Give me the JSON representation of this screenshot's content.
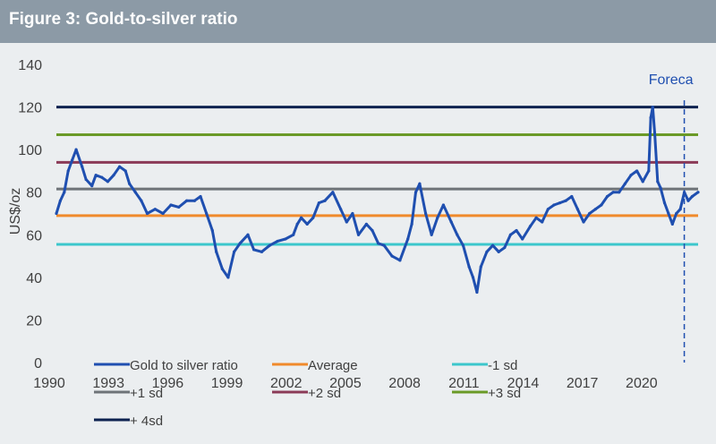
{
  "chart_data": {
    "type": "line",
    "title": "Figure 3: Gold-to-silver ratio",
    "ylabel": "US$/oz",
    "xlabel": "",
    "xlim": [
      1990,
      2022.5
    ],
    "ylim": [
      0,
      140
    ],
    "yticks": [
      "0",
      "20",
      "40",
      "60",
      "80",
      "100",
      "120",
      "140"
    ],
    "xticks": [
      "1990",
      "1993",
      "1996",
      "1999",
      "2002",
      "2005",
      "2008",
      "2011",
      "2014",
      "2017",
      "2020"
    ],
    "forecast_label": "Foreca",
    "forecast_x": 2021.8,
    "colors": {
      "ratio": "#1f4fb0",
      "average": "#f08a2c",
      "minus1": "#3cc7cc",
      "plus1": "#6e7378",
      "plus2": "#8b3a57",
      "plus3": "#6a9a27",
      "plus4": "#0d2250",
      "title_bg": "#8c9aa6",
      "plot_bg": "#ebeef0"
    },
    "series": [
      {
        "name": "Gold to silver ratio",
        "key": "ratio",
        "x": [
          1990.0,
          1990.2,
          1990.4,
          1990.6,
          1990.8,
          1991.0,
          1991.3,
          1991.5,
          1991.8,
          1992.0,
          1992.3,
          1992.6,
          1992.9,
          1993.2,
          1993.5,
          1993.7,
          1994.0,
          1994.3,
          1994.6,
          1995.0,
          1995.4,
          1995.8,
          1996.2,
          1996.6,
          1997.0,
          1997.3,
          1997.6,
          1997.9,
          1998.1,
          1998.4,
          1998.7,
          1999.0,
          1999.3,
          1999.7,
          2000.0,
          2000.4,
          2000.8,
          2001.2,
          2001.6,
          2002.0,
          2002.2,
          2002.4,
          2002.7,
          2003.0,
          2003.3,
          2003.6,
          2004.0,
          2004.4,
          2004.7,
          2005.0,
          2005.3,
          2005.7,
          2006.0,
          2006.3,
          2006.6,
          2007.0,
          2007.4,
          2007.8,
          2008.0,
          2008.2,
          2008.4,
          2008.7,
          2009.0,
          2009.3,
          2009.6,
          2010.0,
          2010.3,
          2010.6,
          2010.9,
          2011.1,
          2011.3,
          2011.5,
          2011.8,
          2012.1,
          2012.4,
          2012.7,
          2013.0,
          2013.3,
          2013.6,
          2014.0,
          2014.3,
          2014.6,
          2014.9,
          2015.2,
          2015.5,
          2015.8,
          2016.1,
          2016.4,
          2016.7,
          2017.0,
          2017.3,
          2017.6,
          2017.9,
          2018.2,
          2018.5,
          2018.8,
          2019.1,
          2019.4,
          2019.7,
          2020.0,
          2020.1,
          2020.2,
          2020.3,
          2020.45,
          2020.6,
          2020.8,
          2021.0,
          2021.2,
          2021.4,
          2021.6,
          2021.8,
          2022.0,
          2022.2,
          2022.5
        ],
        "values": [
          70,
          76,
          80,
          90,
          95,
          100,
          92,
          86,
          83,
          88,
          87,
          85,
          88,
          92,
          90,
          84,
          80,
          76,
          70,
          72,
          70,
          74,
          73,
          76,
          76,
          78,
          70,
          62,
          52,
          44,
          40,
          52,
          56,
          60,
          53,
          52,
          55,
          57,
          58,
          60,
          65,
          68,
          65,
          68,
          75,
          76,
          80,
          72,
          66,
          70,
          60,
          65,
          62,
          56,
          55,
          50,
          48,
          58,
          65,
          80,
          84,
          70,
          60,
          68,
          74,
          66,
          60,
          55,
          45,
          40,
          33,
          45,
          52,
          55,
          52,
          54,
          60,
          62,
          58,
          64,
          68,
          66,
          72,
          74,
          75,
          76,
          78,
          72,
          66,
          70,
          72,
          74,
          78,
          80,
          80,
          84,
          88,
          90,
          85,
          90,
          115,
          120,
          108,
          85,
          82,
          75,
          70,
          65,
          70,
          72,
          80,
          76,
          78,
          80
        ]
      }
    ],
    "reference_lines": [
      {
        "name": "Average",
        "key": "average",
        "value": 69
      },
      {
        "name": "-1 sd",
        "key": "minus1",
        "value": 55.5
      },
      {
        "name": "+1 sd",
        "key": "plus1",
        "value": 81.5
      },
      {
        "name": "+2 sd",
        "key": "plus2",
        "value": 94
      },
      {
        "name": "+3 sd",
        "key": "plus3",
        "value": 107
      },
      {
        "name": "+ 4sd",
        "key": "plus4",
        "value": 120
      }
    ],
    "legend": [
      {
        "label": "Gold to silver ratio",
        "key": "ratio"
      },
      {
        "label": "Average",
        "key": "average"
      },
      {
        "label": "-1 sd",
        "key": "minus1"
      },
      {
        "label": "+1 sd",
        "key": "plus1"
      },
      {
        "label": "+2 sd",
        "key": "plus2"
      },
      {
        "label": "+3 sd",
        "key": "plus3"
      },
      {
        "label": "+ 4sd",
        "key": "plus4"
      }
    ]
  }
}
